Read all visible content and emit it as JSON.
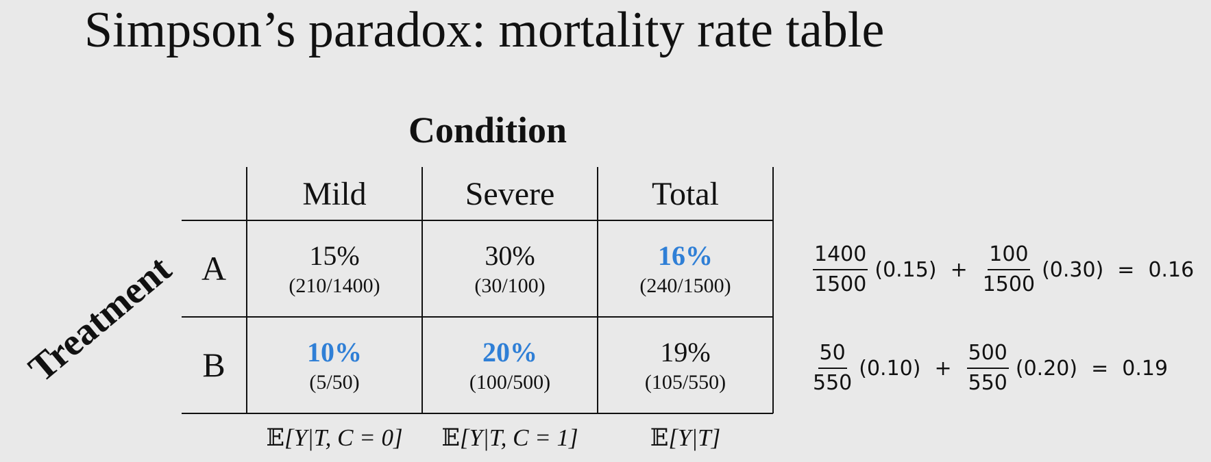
{
  "title": "Simpson’s paradox: mortality rate table",
  "header": {
    "condition": "Condition",
    "treatment": "Treatment"
  },
  "columns": [
    "Mild",
    "Severe",
    "Total"
  ],
  "rows": [
    {
      "label": "A",
      "cells": [
        {
          "pct": "15%",
          "frac": "(210/1400)",
          "highlight": false
        },
        {
          "pct": "30%",
          "frac": "(30/100)",
          "highlight": false
        },
        {
          "pct": "16%",
          "frac": "(240/1500)",
          "highlight": true
        }
      ]
    },
    {
      "label": "B",
      "cells": [
        {
          "pct": "10%",
          "frac": "(5/50)",
          "highlight": true
        },
        {
          "pct": "20%",
          "frac": "(100/500)",
          "highlight": true
        },
        {
          "pct": "19%",
          "frac": "(105/550)",
          "highlight": false
        }
      ]
    }
  ],
  "expectations": [
    {
      "bb": "𝔼",
      "rest": "[Y|T, C = 0]"
    },
    {
      "bb": "𝔼",
      "rest": "[Y|T, C = 1]"
    },
    {
      "bb": "𝔼",
      "rest": "[Y|T]"
    }
  ],
  "equations": [
    {
      "f1_num": "1400",
      "f1_den": "1500",
      "t1": "(0.15)",
      "plus": "+",
      "f2_num": "100",
      "f2_den": "1500",
      "t2": "(0.30)",
      "eq": "=",
      "result": "0.16"
    },
    {
      "f1_num": "50",
      "f1_den": "550",
      "t1": "(0.10)",
      "plus": "+",
      "f2_num": "500",
      "f2_den": "550",
      "t2": "(0.20)",
      "eq": "=",
      "result": "0.19"
    }
  ],
  "colors": {
    "highlight": "#2f7fd6",
    "background": "#e9e9e9",
    "text": "#111111"
  }
}
